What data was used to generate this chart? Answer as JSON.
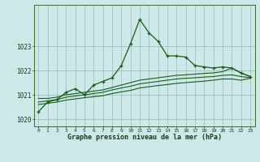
{
  "title": "Graphe pression niveau de la mer (hPa)",
  "background_color": "#cce8e8",
  "grid_color": "#99bbbb",
  "line_color": "#1a5c1a",
  "x_labels": [
    "0",
    "1",
    "2",
    "3",
    "4",
    "5",
    "6",
    "7",
    "8",
    "9",
    "10",
    "11",
    "12",
    "13",
    "14",
    "15",
    "16",
    "17",
    "18",
    "19",
    "20",
    "21",
    "22",
    "23"
  ],
  "ylim": [
    1019.7,
    1024.7
  ],
  "yticks": [
    1020,
    1021,
    1022,
    1023
  ],
  "series1": [
    1020.3,
    1020.7,
    1020.8,
    1021.1,
    1021.25,
    1021.0,
    1021.4,
    1021.55,
    1021.7,
    1022.2,
    1023.1,
    1024.1,
    1023.55,
    1023.2,
    1022.6,
    1022.6,
    1022.55,
    1022.2,
    1022.15,
    1022.1,
    1022.15,
    1022.1,
    1021.9,
    1021.75
  ],
  "series2": [
    1020.85,
    1020.85,
    1020.9,
    1021.0,
    1021.05,
    1021.1,
    1021.15,
    1021.2,
    1021.3,
    1021.4,
    1021.5,
    1021.6,
    1021.65,
    1021.7,
    1021.75,
    1021.8,
    1021.82,
    1021.85,
    1021.88,
    1021.9,
    1021.95,
    1022.1,
    1021.9,
    1021.75
  ],
  "series3": [
    1020.7,
    1020.75,
    1020.8,
    1020.9,
    1020.95,
    1021.0,
    1021.05,
    1021.1,
    1021.2,
    1021.28,
    1021.35,
    1021.45,
    1021.5,
    1021.55,
    1021.6,
    1021.65,
    1021.68,
    1021.7,
    1021.73,
    1021.75,
    1021.8,
    1021.82,
    1021.75,
    1021.7
  ],
  "series4": [
    1020.6,
    1020.65,
    1020.7,
    1020.78,
    1020.83,
    1020.88,
    1020.92,
    1020.96,
    1021.05,
    1021.12,
    1021.18,
    1021.28,
    1021.33,
    1021.38,
    1021.42,
    1021.47,
    1021.5,
    1021.53,
    1021.56,
    1021.6,
    1021.65,
    1021.65,
    1021.6,
    1021.68
  ]
}
